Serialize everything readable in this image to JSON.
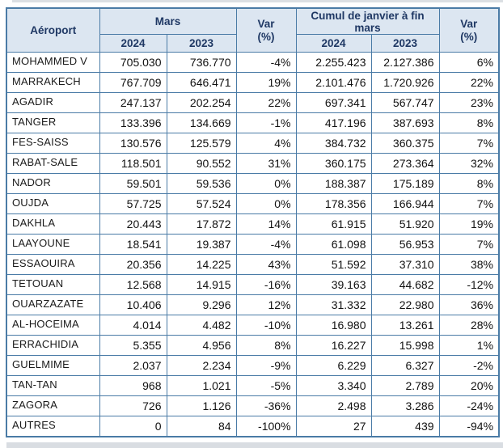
{
  "colors": {
    "border": "#4a7ba6",
    "header_background": "#dce6f1",
    "header_text": "#1f3864",
    "body_text": "#111111",
    "page_background": "#ffffff",
    "shadow_strip": "#d9dde2"
  },
  "table": {
    "headers": {
      "airport": "Aéroport",
      "mars": "Mars",
      "var_mars": "Var\n(%)",
      "cumul": "Cumul de janvier à fin mars",
      "var_cumul": "Var\n(%)"
    },
    "subheaders": {
      "mars_2024": "2024",
      "mars_2023": "2023",
      "cumul_2024": "2024",
      "cumul_2023": "2023"
    },
    "rows": [
      {
        "airport": "MOHAMMED V",
        "mars_2024": "705.030",
        "mars_2023": "736.770",
        "var_mars": "-4%",
        "cumul_2024": "2.255.423",
        "cumul_2023": "2.127.386",
        "var_cumul": "6%"
      },
      {
        "airport": "MARRAKECH",
        "mars_2024": "767.709",
        "mars_2023": "646.471",
        "var_mars": "19%",
        "cumul_2024": "2.101.476",
        "cumul_2023": "1.720.926",
        "var_cumul": "22%"
      },
      {
        "airport": "AGADIR",
        "mars_2024": "247.137",
        "mars_2023": "202.254",
        "var_mars": "22%",
        "cumul_2024": "697.341",
        "cumul_2023": "567.747",
        "var_cumul": "23%"
      },
      {
        "airport": "TANGER",
        "mars_2024": "133.396",
        "mars_2023": "134.669",
        "var_mars": "-1%",
        "cumul_2024": "417.196",
        "cumul_2023": "387.693",
        "var_cumul": "8%"
      },
      {
        "airport": "FES-SAISS",
        "mars_2024": "130.576",
        "mars_2023": "125.579",
        "var_mars": "4%",
        "cumul_2024": "384.732",
        "cumul_2023": "360.375",
        "var_cumul": "7%"
      },
      {
        "airport": "RABAT-SALE",
        "mars_2024": "118.501",
        "mars_2023": "90.552",
        "var_mars": "31%",
        "cumul_2024": "360.175",
        "cumul_2023": "273.364",
        "var_cumul": "32%"
      },
      {
        "airport": "NADOR",
        "mars_2024": "59.501",
        "mars_2023": "59.536",
        "var_mars": "0%",
        "cumul_2024": "188.387",
        "cumul_2023": "175.189",
        "var_cumul": "8%"
      },
      {
        "airport": "OUJDA",
        "mars_2024": "57.725",
        "mars_2023": "57.524",
        "var_mars": "0%",
        "cumul_2024": "178.356",
        "cumul_2023": "166.944",
        "var_cumul": "7%"
      },
      {
        "airport": "DAKHLA",
        "mars_2024": "20.443",
        "mars_2023": "17.872",
        "var_mars": "14%",
        "cumul_2024": "61.915",
        "cumul_2023": "51.920",
        "var_cumul": "19%"
      },
      {
        "airport": "LAAYOUNE",
        "mars_2024": "18.541",
        "mars_2023": "19.387",
        "var_mars": "-4%",
        "cumul_2024": "61.098",
        "cumul_2023": "56.953",
        "var_cumul": "7%"
      },
      {
        "airport": "ESSAOUIRA",
        "mars_2024": "20.356",
        "mars_2023": "14.225",
        "var_mars": "43%",
        "cumul_2024": "51.592",
        "cumul_2023": "37.310",
        "var_cumul": "38%"
      },
      {
        "airport": "TETOUAN",
        "mars_2024": "12.568",
        "mars_2023": "14.915",
        "var_mars": "-16%",
        "cumul_2024": "39.163",
        "cumul_2023": "44.682",
        "var_cumul": "-12%"
      },
      {
        "airport": "OUARZAZATE",
        "mars_2024": "10.406",
        "mars_2023": "9.296",
        "var_mars": "12%",
        "cumul_2024": "31.332",
        "cumul_2023": "22.980",
        "var_cumul": "36%"
      },
      {
        "airport": "AL-HOCEIMA",
        "mars_2024": "4.014",
        "mars_2023": "4.482",
        "var_mars": "-10%",
        "cumul_2024": "16.980",
        "cumul_2023": "13.261",
        "var_cumul": "28%"
      },
      {
        "airport": "ERRACHIDIA",
        "mars_2024": "5.355",
        "mars_2023": "4.956",
        "var_mars": "8%",
        "cumul_2024": "16.227",
        "cumul_2023": "15.998",
        "var_cumul": "1%"
      },
      {
        "airport": "GUELMIME",
        "mars_2024": "2.037",
        "mars_2023": "2.234",
        "var_mars": "-9%",
        "cumul_2024": "6.229",
        "cumul_2023": "6.327",
        "var_cumul": "-2%"
      },
      {
        "airport": "TAN-TAN",
        "mars_2024": "968",
        "mars_2023": "1.021",
        "var_mars": "-5%",
        "cumul_2024": "3.340",
        "cumul_2023": "2.789",
        "var_cumul": "20%"
      },
      {
        "airport": "ZAGORA",
        "mars_2024": "726",
        "mars_2023": "1.126",
        "var_mars": "-36%",
        "cumul_2024": "2.498",
        "cumul_2023": "3.286",
        "var_cumul": "-24%"
      },
      {
        "airport": "AUTRES",
        "mars_2024": "0",
        "mars_2023": "84",
        "var_mars": "-100%",
        "cumul_2024": "27",
        "cumul_2023": "439",
        "var_cumul": "-94%"
      }
    ]
  }
}
